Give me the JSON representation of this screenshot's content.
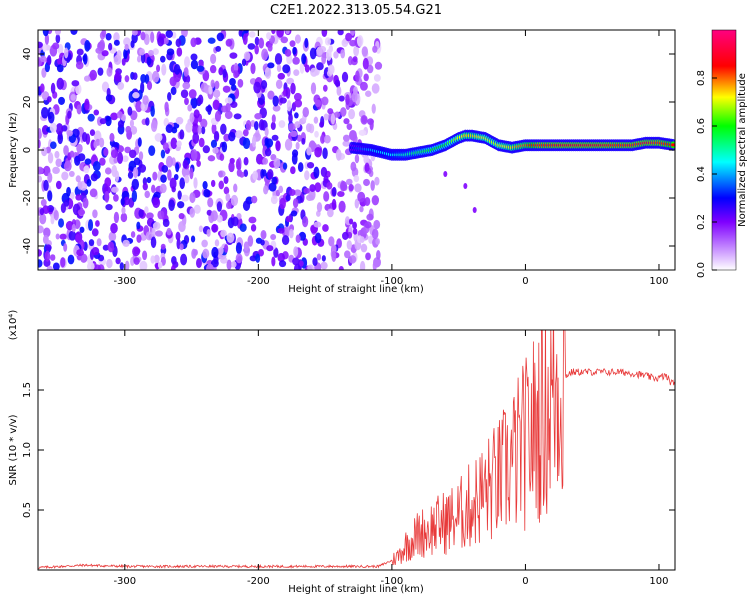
{
  "figure": {
    "title": "C2E1.2022.313.05.54.G21"
  },
  "chart_data": [
    {
      "type": "heatmap",
      "xlabel": "Height of straight line (km)",
      "ylabel": "Frequency (Hz)",
      "xlim": [
        -365,
        112
      ],
      "ylim": [
        -50,
        50
      ],
      "xticks": [
        -300,
        -200,
        -100,
        0,
        100
      ],
      "yticks": [
        -40,
        -20,
        0,
        20,
        40
      ],
      "colorbar": {
        "label": "Normalized spectral amplitude",
        "range": [
          0,
          1
        ],
        "ticks": [
          "0.0",
          "0.2",
          "0.4",
          "0.6",
          "0.8"
        ],
        "colors": [
          "#ffffff",
          "#cc99ff",
          "#7f00ff",
          "#0000ff",
          "#00ffff",
          "#00ff00",
          "#ffff00",
          "#ff0000",
          "#ff0080"
        ]
      },
      "noise_region_x": [
        -365,
        -110
      ],
      "signal_trace": {
        "x": [
          -130,
          -115,
          -100,
          -90,
          -80,
          -70,
          -60,
          -50,
          -45,
          -40,
          -30,
          -20,
          -10,
          0,
          10,
          30,
          60,
          80,
          90,
          100,
          112
        ],
        "freq": [
          1,
          0,
          -2,
          -2,
          -1,
          0,
          2,
          5,
          6,
          6,
          5,
          2,
          1,
          2,
          2,
          2,
          2,
          2,
          3,
          3,
          2
        ],
        "amplitude": [
          0.3,
          0.4,
          0.45,
          0.5,
          0.55,
          0.6,
          0.6,
          0.7,
          0.75,
          0.75,
          0.7,
          0.7,
          0.75,
          0.8,
          0.9,
          0.9,
          0.9,
          0.9,
          0.9,
          0.9,
          0.85
        ]
      },
      "secondary_trace": {
        "x": [
          -60,
          -45,
          -38
        ],
        "freq": [
          -10,
          -15,
          -25
        ]
      }
    },
    {
      "type": "line",
      "xlabel": "Height of straight line (km)",
      "ylabel": "SNR (10 * v/v)",
      "scale_label": "(x10⁴)",
      "xlim": [
        -365,
        112
      ],
      "ylim": [
        0,
        2.0
      ],
      "xticks": [
        -300,
        -200,
        -100,
        0,
        100
      ],
      "yticks": [
        "0.5",
        "1.0",
        "1.5"
      ],
      "line_color": "#e83a3a",
      "series": [
        {
          "x": [
            -365,
            -330,
            -300,
            -250,
            -200,
            -150,
            -110,
            -100,
            -95,
            -90,
            -80,
            -70,
            -60,
            -50,
            -40,
            -30,
            -20,
            -10,
            0,
            5,
            8,
            10,
            15,
            20,
            25,
            30,
            35,
            40,
            50,
            60,
            70,
            80,
            90,
            95,
            100,
            105,
            110,
            112
          ],
          "y": [
            0.02,
            0.04,
            0.03,
            0.03,
            0.03,
            0.03,
            0.03,
            0.08,
            0.12,
            0.2,
            0.3,
            0.35,
            0.4,
            0.45,
            0.55,
            0.65,
            0.75,
            0.9,
            1.05,
            1.15,
            1.2,
            1.25,
            1.35,
            1.45,
            1.55,
            1.62,
            1.65,
            1.65,
            1.65,
            1.65,
            1.65,
            1.64,
            1.62,
            1.6,
            1.6,
            1.62,
            1.55,
            1.58
          ]
        }
      ]
    }
  ]
}
